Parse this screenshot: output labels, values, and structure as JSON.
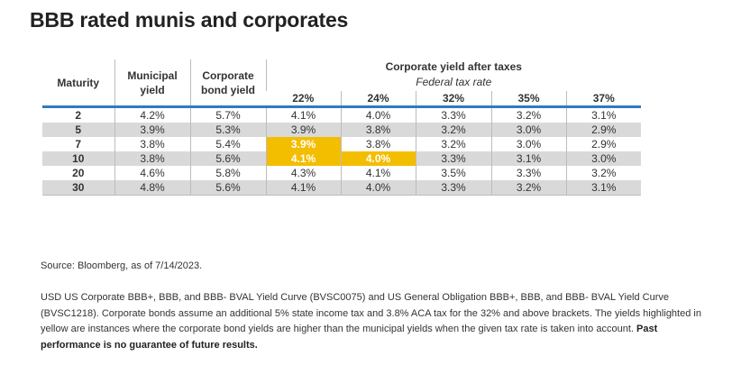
{
  "title": "BBB rated munis and corporates",
  "table": {
    "headers": {
      "maturity": "Maturity",
      "municipal": "Municipal yield",
      "corporate": "Corporate bond yield",
      "group": "Corporate yield after taxes",
      "group_sub": "Federal tax rate",
      "brackets": [
        "22%",
        "24%",
        "32%",
        "35%",
        "37%"
      ]
    },
    "rows": [
      {
        "maturity": "2",
        "muni": "4.2%",
        "corp": "5.7%",
        "after": [
          "4.1%",
          "4.0%",
          "3.3%",
          "3.2%",
          "3.1%"
        ]
      },
      {
        "maturity": "5",
        "muni": "3.9%",
        "corp": "5.3%",
        "after": [
          "3.9%",
          "3.8%",
          "3.2%",
          "3.0%",
          "2.9%"
        ]
      },
      {
        "maturity": "7",
        "muni": "3.8%",
        "corp": "5.4%",
        "after": [
          "3.9%",
          "3.8%",
          "3.2%",
          "3.0%",
          "2.9%"
        ]
      },
      {
        "maturity": "10",
        "muni": "3.8%",
        "corp": "5.6%",
        "after": [
          "4.1%",
          "4.0%",
          "3.3%",
          "3.1%",
          "3.0%"
        ]
      },
      {
        "maturity": "20",
        "muni": "4.6%",
        "corp": "5.8%",
        "after": [
          "4.3%",
          "4.1%",
          "3.5%",
          "3.3%",
          "3.2%"
        ]
      },
      {
        "maturity": "30",
        "muni": "4.8%",
        "corp": "5.6%",
        "after": [
          "4.1%",
          "4.0%",
          "3.3%",
          "3.2%",
          "3.1%"
        ]
      }
    ],
    "highlighted_cells": [
      {
        "row": 2,
        "col": 0
      },
      {
        "row": 3,
        "col": 0
      },
      {
        "row": 3,
        "col": 1
      }
    ],
    "colors": {
      "highlight": "#f3bd00",
      "header_rule": "#2e7bbf",
      "row_shade": "#d9d9d9"
    }
  },
  "source": "Source: Bloomberg, as of 7/14/2023.",
  "note": {
    "text": "USD US Corporate BBB+, BBB, and BBB- BVAL Yield Curve (BVSC0075) and US General Obligation BBB+, BBB, and BBB- BVAL Yield Curve (BVSC1218). Corporate bonds assume an additional 5% state income tax and 3.8% ACA tax for the 32% and above brackets. The yields highlighted in yellow are instances where the corporate bond yields are higher than the municipal yields when the given tax rate is taken into account.",
    "disclaimer": "Past performance is no guarantee of future results."
  }
}
